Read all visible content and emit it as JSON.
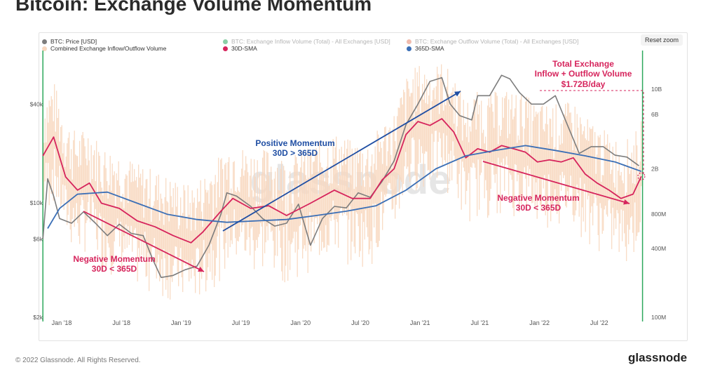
{
  "title": "Bitcoin: Exchange Volume Momentum",
  "reset_zoom": "Reset zoom",
  "footer": "© 2022 Glassnode. All Rights Reserved.",
  "brand": "glassnode",
  "watermark": "glassnode",
  "legend": [
    {
      "label": "BTC: Price [USD]",
      "color": "#7d7d7d",
      "faded": false
    },
    {
      "label": "BTC: Exchange Inflow Volume (Total) - All Exchanges [USD]",
      "color": "#2ca85c",
      "faded": true
    },
    {
      "label": "BTC: Exchange Outflow Volume (Total) - All Exchanges [USD]",
      "color": "#e3856b",
      "faded": true
    },
    {
      "label": "Combined Exchange Inflow/Outflow Volume",
      "color": "#f8d8c0",
      "faded": false
    },
    {
      "label": "30D-SMA",
      "color": "#d6245c",
      "faded": false
    },
    {
      "label": "365D-SMA",
      "color": "#3b6fb6",
      "faded": false
    }
  ],
  "annotations": [
    {
      "text": "Negative Momentum",
      "color": "#d6245c"
    },
    {
      "text": "30D < 365D",
      "color": "#d6245c"
    },
    {
      "text": "Positive Momentum",
      "color": "#1f4ea3"
    },
    {
      "text": "30D > 365D",
      "color": "#1f4ea3"
    },
    {
      "text": "Negative Momentum",
      "color": "#d6245c"
    },
    {
      "text": "30D < 365D",
      "color": "#d6245c"
    },
    {
      "text": "Total Exchange",
      "color": "#d6245c"
    },
    {
      "text": "Inflow + Outflow Volume",
      "color": "#d6245c"
    },
    {
      "text": "$1.72B/day",
      "color": "#d6245c"
    }
  ],
  "chart_data": {
    "type": "line",
    "title": "Bitcoin: Exchange Volume Momentum",
    "x_ticks": [
      "Jan '18",
      "Jul '18",
      "Jan '19",
      "Jul '19",
      "Jan '20",
      "Jul '20",
      "Jan '21",
      "Jul '21",
      "Jan '22",
      "Jul '22"
    ],
    "y_left": {
      "scale": "log",
      "ticks": [
        "$2k",
        "$6k",
        "$10k",
        "$40k"
      ],
      "tick_values": [
        2000,
        6000,
        10000,
        40000
      ],
      "range": [
        2000,
        80000
      ]
    },
    "y_right": {
      "scale": "log",
      "ticks": [
        "100M",
        "400M",
        "800M",
        "2B",
        "6B",
        "10B"
      ],
      "tick_values": [
        100000000,
        400000000,
        800000000,
        2000000000,
        6000000000,
        10000000000
      ],
      "range": [
        100000000,
        20000000000
      ]
    },
    "x_range": [
      2018.0,
      2023.0
    ],
    "series": [
      {
        "name": "BTC: Price [USD]",
        "axis": "left",
        "color": "#7d7d7d",
        "points": [
          [
            2017.96,
            6000
          ],
          [
            2018.0,
            14000
          ],
          [
            2018.05,
            11000
          ],
          [
            2018.1,
            8000
          ],
          [
            2018.2,
            7500
          ],
          [
            2018.3,
            8800
          ],
          [
            2018.4,
            7500
          ],
          [
            2018.5,
            6300
          ],
          [
            2018.6,
            7400
          ],
          [
            2018.7,
            6500
          ],
          [
            2018.8,
            6300
          ],
          [
            2018.88,
            4500
          ],
          [
            2018.95,
            3500
          ],
          [
            2019.05,
            3600
          ],
          [
            2019.15,
            3900
          ],
          [
            2019.25,
            4100
          ],
          [
            2019.35,
            5500
          ],
          [
            2019.45,
            8500
          ],
          [
            2019.5,
            11500
          ],
          [
            2019.58,
            11000
          ],
          [
            2019.7,
            9500
          ],
          [
            2019.8,
            8000
          ],
          [
            2019.9,
            7200
          ],
          [
            2020.0,
            7500
          ],
          [
            2020.1,
            9800
          ],
          [
            2020.2,
            5500
          ],
          [
            2020.3,
            8000
          ],
          [
            2020.4,
            9500
          ],
          [
            2020.5,
            9300
          ],
          [
            2020.6,
            11500
          ],
          [
            2020.7,
            10800
          ],
          [
            2020.8,
            13500
          ],
          [
            2020.9,
            18000
          ],
          [
            2021.0,
            30000
          ],
          [
            2021.1,
            40000
          ],
          [
            2021.2,
            55000
          ],
          [
            2021.3,
            58000
          ],
          [
            2021.37,
            40000
          ],
          [
            2021.45,
            34000
          ],
          [
            2021.55,
            32000
          ],
          [
            2021.6,
            45000
          ],
          [
            2021.7,
            45000
          ],
          [
            2021.8,
            60000
          ],
          [
            2021.87,
            57000
          ],
          [
            2021.95,
            47000
          ],
          [
            2022.05,
            40000
          ],
          [
            2022.15,
            40000
          ],
          [
            2022.25,
            45000
          ],
          [
            2022.35,
            30000
          ],
          [
            2022.45,
            20000
          ],
          [
            2022.55,
            22000
          ],
          [
            2022.65,
            22000
          ],
          [
            2022.75,
            19500
          ],
          [
            2022.85,
            19000
          ],
          [
            2022.95,
            16800
          ]
        ]
      },
      {
        "name": "30D-SMA",
        "axis": "right",
        "color": "#d6245c",
        "points": [
          [
            2017.96,
            2600000000
          ],
          [
            2018.05,
            3800000000
          ],
          [
            2018.15,
            1700000000
          ],
          [
            2018.25,
            1300000000
          ],
          [
            2018.35,
            1500000000
          ],
          [
            2018.45,
            1000000000
          ],
          [
            2018.6,
            900000000
          ],
          [
            2018.75,
            700000000
          ],
          [
            2018.9,
            620000000
          ],
          [
            2019.05,
            520000000
          ],
          [
            2019.2,
            450000000
          ],
          [
            2019.3,
            560000000
          ],
          [
            2019.45,
            850000000
          ],
          [
            2019.55,
            1100000000
          ],
          [
            2019.7,
            900000000
          ],
          [
            2019.85,
            950000000
          ],
          [
            2020.0,
            780000000
          ],
          [
            2020.2,
            1000000000
          ],
          [
            2020.4,
            1300000000
          ],
          [
            2020.55,
            1100000000
          ],
          [
            2020.7,
            1100000000
          ],
          [
            2020.8,
            1600000000
          ],
          [
            2020.9,
            2000000000
          ],
          [
            2021.0,
            4000000000
          ],
          [
            2021.1,
            5200000000
          ],
          [
            2021.2,
            4800000000
          ],
          [
            2021.3,
            5500000000
          ],
          [
            2021.4,
            4200000000
          ],
          [
            2021.5,
            2500000000
          ],
          [
            2021.6,
            3000000000
          ],
          [
            2021.7,
            2800000000
          ],
          [
            2021.8,
            3200000000
          ],
          [
            2021.9,
            3000000000
          ],
          [
            2022.0,
            2800000000
          ],
          [
            2022.1,
            2300000000
          ],
          [
            2022.2,
            2400000000
          ],
          [
            2022.3,
            2300000000
          ],
          [
            2022.4,
            2500000000
          ],
          [
            2022.5,
            1800000000
          ],
          [
            2022.6,
            1500000000
          ],
          [
            2022.7,
            1300000000
          ],
          [
            2022.8,
            1100000000
          ],
          [
            2022.9,
            1200000000
          ],
          [
            2022.97,
            1720000000
          ]
        ]
      },
      {
        "name": "365D-SMA",
        "axis": "right",
        "color": "#3b6fb6",
        "points": [
          [
            2018.0,
            600000000
          ],
          [
            2018.1,
            900000000
          ],
          [
            2018.25,
            1200000000
          ],
          [
            2018.5,
            1250000000
          ],
          [
            2018.75,
            1000000000
          ],
          [
            2019.0,
            800000000
          ],
          [
            2019.25,
            720000000
          ],
          [
            2019.5,
            680000000
          ],
          [
            2019.75,
            700000000
          ],
          [
            2020.0,
            720000000
          ],
          [
            2020.25,
            780000000
          ],
          [
            2020.5,
            850000000
          ],
          [
            2020.75,
            950000000
          ],
          [
            2021.0,
            1300000000
          ],
          [
            2021.25,
            2000000000
          ],
          [
            2021.5,
            2600000000
          ],
          [
            2021.75,
            2900000000
          ],
          [
            2022.0,
            3200000000
          ],
          [
            2022.25,
            2900000000
          ],
          [
            2022.5,
            2600000000
          ],
          [
            2022.75,
            2300000000
          ],
          [
            2022.97,
            1900000000
          ]
        ]
      }
    ],
    "bars": {
      "name": "Combined Exchange Inflow/Outflow Volume",
      "axis": "right",
      "color": "#f8d8c0"
    },
    "grid": false,
    "legend_placement": "top"
  }
}
